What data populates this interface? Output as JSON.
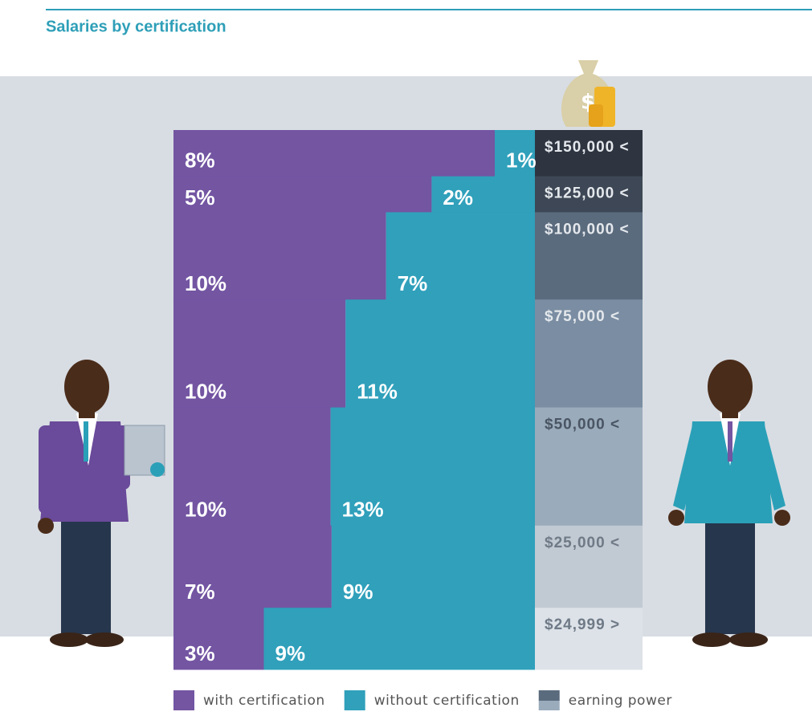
{
  "chart_data": {
    "type": "bar",
    "stacking": "percent",
    "title": "Salaries by certification",
    "categories": [
      "$150,000 <",
      "$125,000 <",
      "$100,000 <",
      "$75,000 <",
      "$50,000 <",
      "$25,000 <",
      "$24,999 >"
    ],
    "series": [
      {
        "name": "with certification",
        "color": "#7355a2",
        "values": [
          8,
          5,
          10,
          10,
          10,
          7,
          3
        ],
        "value_labels": [
          "8%",
          "5%",
          "10%",
          "10%",
          "10%",
          "7%",
          "3%"
        ]
      },
      {
        "name": "without certification",
        "color": "#30a0bb",
        "values": [
          1,
          2,
          7,
          11,
          13,
          9,
          9
        ],
        "value_labels": [
          "1%",
          "2%",
          "7%",
          "11%",
          "13%",
          "9%",
          "9%"
        ]
      }
    ],
    "earning_legend": "earning power",
    "earning_colors": [
      "#2e3541",
      "#3d4755",
      "#5b6b7e",
      "#7a8da2",
      "#9aabbb",
      "#c1c9d2",
      "#dde2e8"
    ],
    "earning_text_colors": [
      "#e4e8ec",
      "#e4e8ec",
      "#e4e8ec",
      "#e4e8ec",
      "#4a5563",
      "#6f7a87",
      "#6f7a87"
    ]
  }
}
